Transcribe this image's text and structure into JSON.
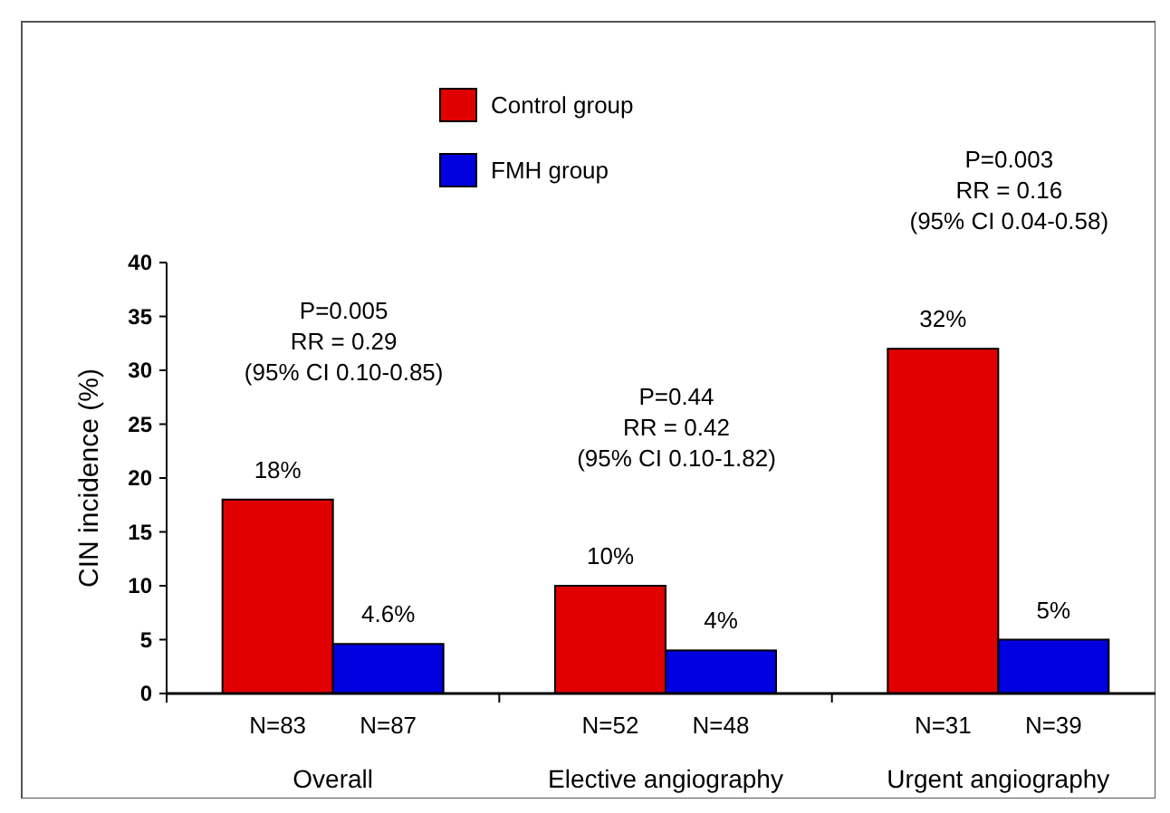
{
  "chart_data": {
    "type": "bar",
    "ylabel": "CIN  incidence (%)",
    "categories": [
      "Overall",
      "Elective angiography",
      "Urgent angiography"
    ],
    "series": [
      {
        "name": "Control group",
        "color": "#e00000",
        "values": [
          18,
          10,
          32
        ],
        "value_labels": [
          "18%",
          "10%",
          "32%"
        ]
      },
      {
        "name": "FMH group",
        "color": "#0000e0",
        "values": [
          4.6,
          4,
          5
        ],
        "value_labels": [
          "4.6%",
          "4%",
          "5%"
        ]
      }
    ],
    "ylim": [
      0,
      40
    ],
    "yticks": [
      0,
      5,
      10,
      15,
      20,
      25,
      30,
      35,
      40
    ],
    "grid": false,
    "legend": "top",
    "annotations": [
      "N=83",
      "N=87",
      "N=52",
      "N=48",
      "N=31",
      "N=39",
      "P=0.005\nRR = 0.29\n(95% CI 0.10-0.85)",
      "P=0.44\nRR = 0.42\n(95% CI 0.10-1.82)",
      "P=0.003\nRR = 0.16\n(95% CI 0.04-0.58)"
    ]
  }
}
